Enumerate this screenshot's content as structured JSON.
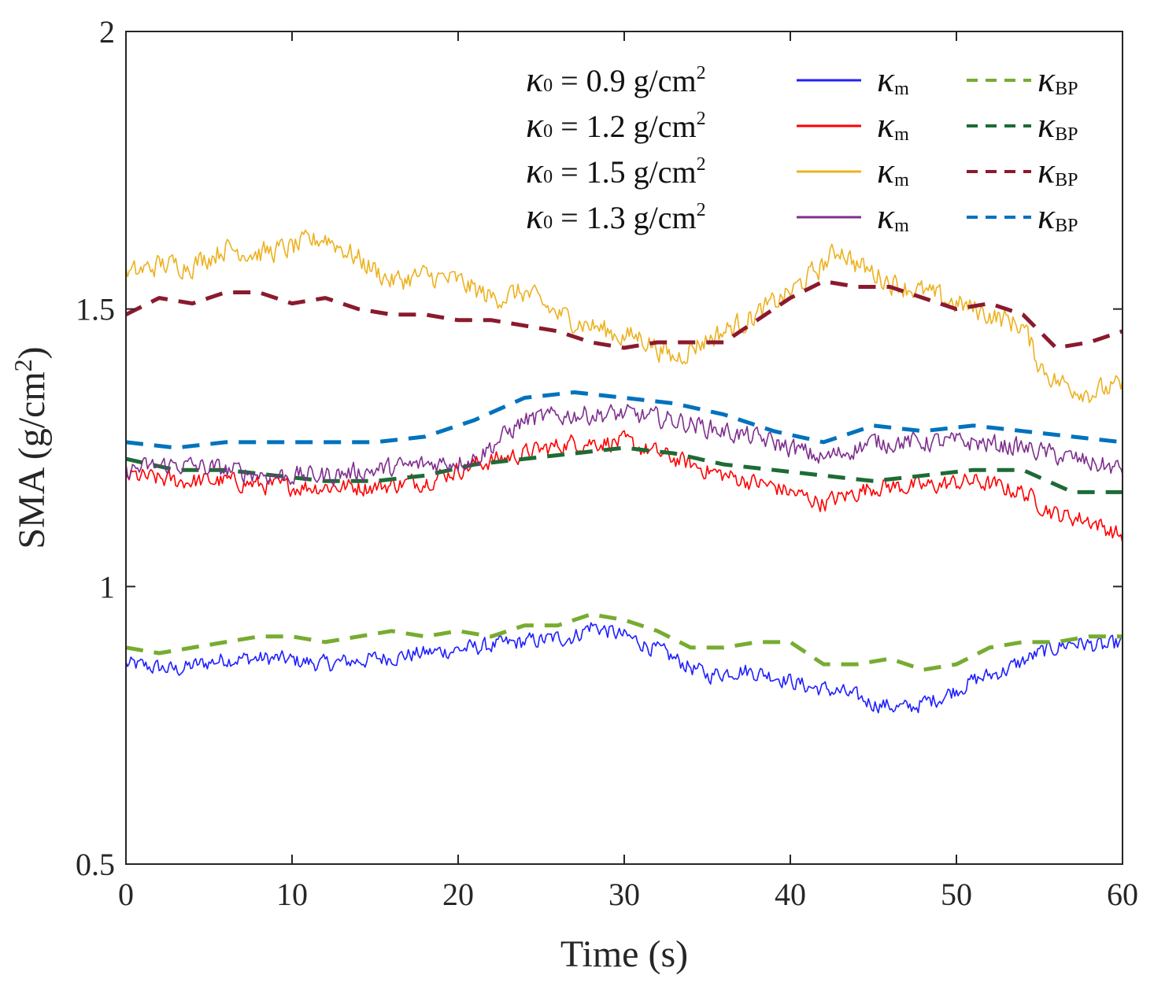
{
  "chart_data": {
    "type": "line",
    "xlabel": "Time (s)",
    "ylabel_main": "SMA (g/cm",
    "ylabel_sup": "2",
    "ylabel_end": ")",
    "xlim": [
      0,
      60
    ],
    "ylim": [
      0.5,
      2
    ],
    "xticks": [
      0,
      10,
      20,
      30,
      40,
      50,
      60
    ],
    "xtick_labels": [
      "0",
      "10",
      "20",
      "30",
      "40",
      "50",
      "60"
    ],
    "yticks": [
      0.5,
      1,
      1.5,
      2
    ],
    "ytick_labels": [
      "0.5",
      "1",
      "1.5",
      "2"
    ],
    "grid": false,
    "legend_placement": "top-right",
    "legend": [
      {
        "label": "κ0 = 0.9 g/cm2",
        "kappa": "κ",
        "sub0": "0",
        "eq": " = 0.9 g/cm",
        "sup": "2",
        "m_sym": "κ",
        "m_sub": "m",
        "bp_sym": "κ",
        "bp_sub": "BP"
      },
      {
        "label": "κ0 = 1.2 g/cm2",
        "kappa": "κ",
        "sub0": "0",
        "eq": " = 1.2 g/cm",
        "sup": "2",
        "m_sym": "κ",
        "m_sub": "m",
        "bp_sym": "κ",
        "bp_sub": "BP"
      },
      {
        "label": "κ0 = 1.5 g/cm2",
        "kappa": "κ",
        "sub0": "0",
        "eq": " = 1.5 g/cm",
        "sup": "2",
        "m_sym": "κ",
        "m_sub": "m",
        "bp_sym": "κ",
        "bp_sub": "BP"
      },
      {
        "label": "κ0 = 1.3 g/cm2",
        "kappa": "κ",
        "sub0": "0",
        "eq": " = 1.3 g/cm",
        "sup": "2",
        "m_sym": "κ",
        "m_sub": "m",
        "bp_sym": "κ",
        "bp_sub": "BP"
      }
    ],
    "series": [
      {
        "name": "κm",
        "group": 0,
        "style": "solid",
        "color": "#1f1fff",
        "noise": 0.022,
        "x": [
          0,
          3,
          6,
          9,
          12,
          15,
          18,
          21,
          24,
          27,
          28,
          29,
          31,
          33,
          35,
          37,
          39,
          41,
          43,
          45,
          47,
          49,
          51,
          53,
          55,
          57,
          59,
          60
        ],
        "y": [
          0.86,
          0.85,
          0.87,
          0.87,
          0.86,
          0.87,
          0.88,
          0.89,
          0.9,
          0.91,
          0.93,
          0.92,
          0.9,
          0.87,
          0.84,
          0.85,
          0.84,
          0.82,
          0.81,
          0.79,
          0.78,
          0.8,
          0.83,
          0.85,
          0.88,
          0.9,
          0.89,
          0.9
        ]
      },
      {
        "name": "κBP",
        "group": 0,
        "style": "dashed",
        "color": "#77ac30",
        "x": [
          0,
          2,
          4,
          6,
          8,
          10,
          12,
          14,
          16,
          18,
          20,
          22,
          24,
          26,
          28,
          30,
          32,
          34,
          36,
          38,
          40,
          42,
          44,
          46,
          48,
          50,
          52,
          54,
          56,
          58,
          60
        ],
        "y": [
          0.89,
          0.88,
          0.89,
          0.9,
          0.91,
          0.91,
          0.9,
          0.91,
          0.92,
          0.91,
          0.92,
          0.91,
          0.93,
          0.93,
          0.95,
          0.94,
          0.92,
          0.89,
          0.89,
          0.9,
          0.9,
          0.86,
          0.86,
          0.87,
          0.85,
          0.86,
          0.89,
          0.9,
          0.9,
          0.91,
          0.91
        ]
      },
      {
        "name": "κm",
        "group": 1,
        "style": "solid",
        "color": "#ff0000",
        "noise": 0.024,
        "x": [
          0,
          3,
          6,
          9,
          12,
          15,
          18,
          21,
          24,
          27,
          30,
          33,
          36,
          39,
          42,
          45,
          48,
          51,
          54,
          56,
          58,
          60
        ],
        "y": [
          1.2,
          1.19,
          1.19,
          1.18,
          1.18,
          1.18,
          1.19,
          1.22,
          1.24,
          1.26,
          1.26,
          1.23,
          1.2,
          1.18,
          1.15,
          1.18,
          1.18,
          1.19,
          1.17,
          1.13,
          1.12,
          1.09
        ]
      },
      {
        "name": "κBP",
        "group": 1,
        "style": "dashed",
        "color": "#1e6b35",
        "x": [
          0,
          3,
          6,
          9,
          12,
          15,
          18,
          21,
          24,
          27,
          30,
          33,
          36,
          39,
          42,
          45,
          48,
          51,
          54,
          57,
          60
        ],
        "y": [
          1.23,
          1.21,
          1.21,
          1.2,
          1.19,
          1.19,
          1.2,
          1.22,
          1.23,
          1.24,
          1.25,
          1.24,
          1.22,
          1.21,
          1.2,
          1.19,
          1.2,
          1.21,
          1.21,
          1.17,
          1.17
        ]
      },
      {
        "name": "κm",
        "group": 2,
        "style": "solid",
        "color": "#edb120",
        "noise": 0.03,
        "x": [
          0,
          2,
          4,
          6,
          8,
          10,
          12,
          14,
          16,
          18,
          20,
          22,
          24,
          26,
          28,
          30,
          31,
          32,
          33,
          34,
          36,
          38,
          40,
          42,
          43,
          44,
          46,
          48,
          50,
          52,
          54,
          55,
          56,
          58,
          60
        ],
        "y": [
          1.56,
          1.58,
          1.58,
          1.61,
          1.6,
          1.61,
          1.63,
          1.59,
          1.55,
          1.56,
          1.55,
          1.52,
          1.53,
          1.49,
          1.47,
          1.45,
          1.45,
          1.43,
          1.41,
          1.43,
          1.46,
          1.49,
          1.53,
          1.58,
          1.61,
          1.58,
          1.55,
          1.53,
          1.51,
          1.49,
          1.47,
          1.4,
          1.37,
          1.35,
          1.36
        ]
      },
      {
        "name": "κBP",
        "group": 2,
        "style": "dashed",
        "color": "#8b1a2e",
        "x": [
          0,
          2,
          4,
          6,
          8,
          10,
          12,
          14,
          16,
          18,
          20,
          22,
          24,
          26,
          28,
          30,
          32,
          34,
          36,
          38,
          40,
          42,
          44,
          46,
          48,
          50,
          52,
          54,
          56,
          58,
          60
        ],
        "y": [
          1.49,
          1.52,
          1.51,
          1.53,
          1.53,
          1.51,
          1.52,
          1.5,
          1.49,
          1.49,
          1.48,
          1.48,
          1.47,
          1.46,
          1.44,
          1.43,
          1.44,
          1.44,
          1.44,
          1.48,
          1.52,
          1.55,
          1.54,
          1.54,
          1.52,
          1.5,
          1.51,
          1.49,
          1.43,
          1.44,
          1.46
        ]
      },
      {
        "name": "κm",
        "group": 3,
        "style": "solid",
        "color": "#7e2f8e",
        "noise": 0.026,
        "x": [
          0,
          3,
          6,
          9,
          12,
          15,
          18,
          21,
          24,
          27,
          30,
          33,
          36,
          39,
          42,
          45,
          48,
          51,
          54,
          57,
          60
        ],
        "y": [
          1.21,
          1.22,
          1.21,
          1.2,
          1.2,
          1.21,
          1.22,
          1.23,
          1.3,
          1.31,
          1.31,
          1.3,
          1.28,
          1.26,
          1.23,
          1.26,
          1.26,
          1.26,
          1.25,
          1.23,
          1.21
        ]
      },
      {
        "name": "κBP",
        "group": 3,
        "style": "dashed",
        "color": "#0072bd",
        "x": [
          0,
          3,
          6,
          9,
          12,
          15,
          18,
          21,
          24,
          27,
          30,
          33,
          36,
          39,
          42,
          45,
          48,
          51,
          54,
          57,
          60
        ],
        "y": [
          1.26,
          1.25,
          1.26,
          1.26,
          1.26,
          1.26,
          1.27,
          1.3,
          1.34,
          1.35,
          1.34,
          1.33,
          1.31,
          1.28,
          1.26,
          1.29,
          1.28,
          1.29,
          1.28,
          1.27,
          1.26
        ]
      }
    ]
  }
}
